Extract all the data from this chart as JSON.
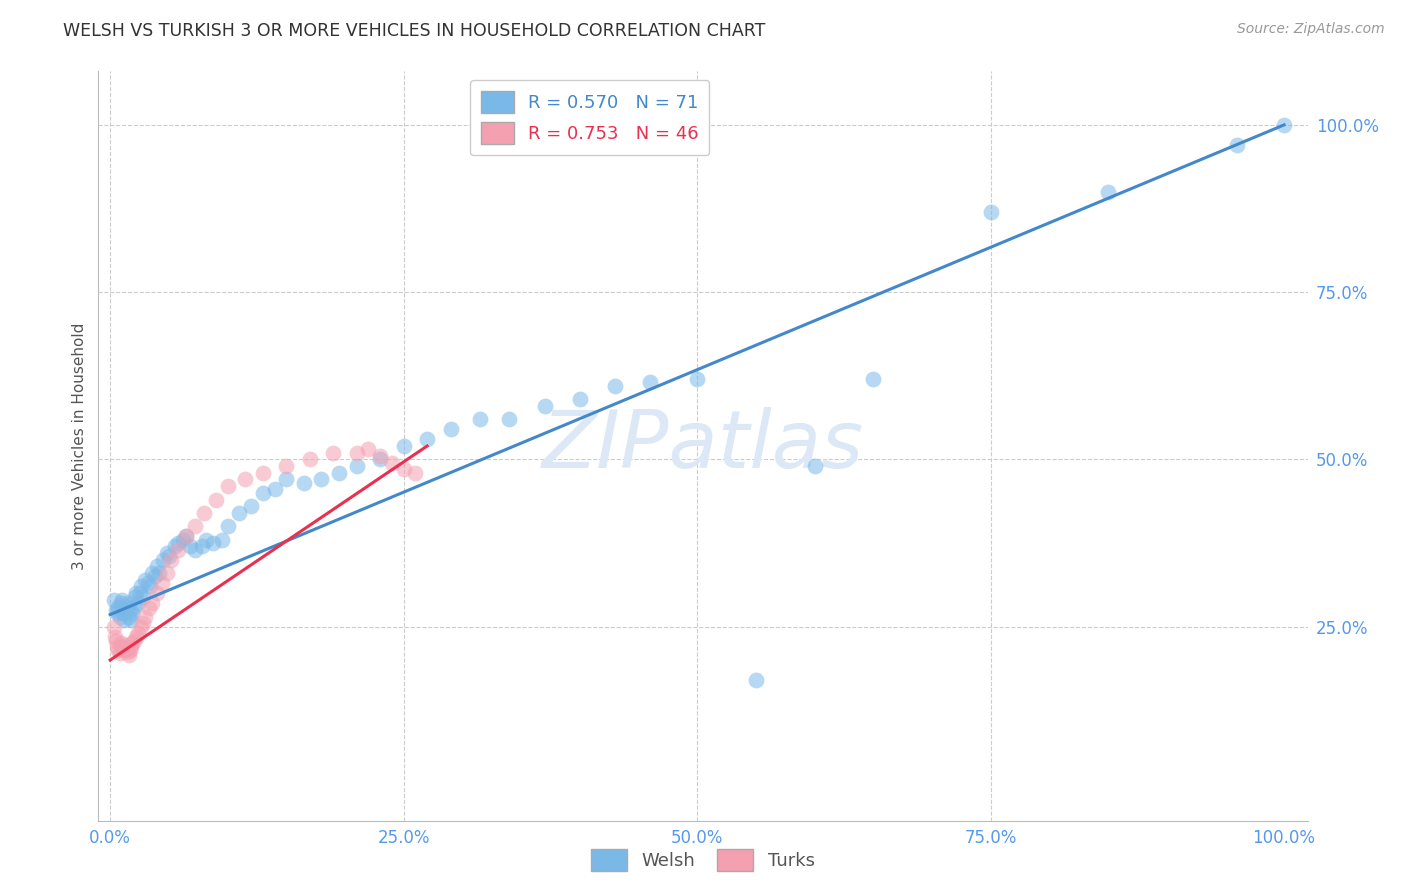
{
  "title": "WELSH VS TURKISH 3 OR MORE VEHICLES IN HOUSEHOLD CORRELATION CHART",
  "source": "Source: ZipAtlas.com",
  "ylabel": "3 or more Vehicles in Household",
  "xlabel": "",
  "xlim": [
    -0.01,
    1.02
  ],
  "ylim": [
    -0.04,
    1.08
  ],
  "xticks": [
    0.0,
    0.25,
    0.5,
    0.75,
    1.0
  ],
  "yticks": [
    0.0,
    0.25,
    0.5,
    0.75,
    1.0
  ],
  "xticklabels": [
    "0.0%",
    "25.0%",
    "50.0%",
    "75.0%",
    "100.0%"
  ],
  "yticklabels": [
    "",
    "25.0%",
    "50.0%",
    "75.0%",
    "100.0%"
  ],
  "welsh_R": 0.57,
  "welsh_N": 71,
  "turks_R": 0.753,
  "turks_N": 46,
  "welsh_color": "#7ab8e8",
  "turks_color": "#f4a0b0",
  "welsh_line_color": "#4488cc",
  "turks_line_color": "#e83050",
  "watermark": "ZIPatlas",
  "watermark_color": "#dce8f5",
  "welsh_x": [
    0.003,
    0.005,
    0.006,
    0.007,
    0.008,
    0.009,
    0.01,
    0.011,
    0.012,
    0.013,
    0.014,
    0.015,
    0.016,
    0.017,
    0.018,
    0.019,
    0.02,
    0.021,
    0.022,
    0.024,
    0.025,
    0.026,
    0.028,
    0.03,
    0.032,
    0.034,
    0.036,
    0.038,
    0.04,
    0.042,
    0.045,
    0.048,
    0.05,
    0.055,
    0.058,
    0.062,
    0.065,
    0.068,
    0.072,
    0.078,
    0.082,
    0.088,
    0.095,
    0.1,
    0.11,
    0.12,
    0.13,
    0.14,
    0.15,
    0.165,
    0.18,
    0.195,
    0.21,
    0.23,
    0.25,
    0.27,
    0.29,
    0.315,
    0.34,
    0.37,
    0.4,
    0.43,
    0.46,
    0.5,
    0.55,
    0.6,
    0.65,
    0.75,
    0.85,
    0.96,
    1.0
  ],
  "welsh_y": [
    0.29,
    0.275,
    0.27,
    0.28,
    0.265,
    0.285,
    0.29,
    0.27,
    0.26,
    0.275,
    0.28,
    0.285,
    0.265,
    0.275,
    0.26,
    0.27,
    0.28,
    0.295,
    0.3,
    0.285,
    0.3,
    0.31,
    0.295,
    0.32,
    0.315,
    0.31,
    0.33,
    0.325,
    0.34,
    0.33,
    0.35,
    0.36,
    0.355,
    0.37,
    0.375,
    0.38,
    0.385,
    0.37,
    0.365,
    0.37,
    0.38,
    0.375,
    0.38,
    0.4,
    0.42,
    0.43,
    0.45,
    0.455,
    0.47,
    0.465,
    0.47,
    0.48,
    0.49,
    0.5,
    0.52,
    0.53,
    0.545,
    0.56,
    0.56,
    0.58,
    0.59,
    0.61,
    0.615,
    0.62,
    0.17,
    0.49,
    0.62,
    0.87,
    0.9,
    0.97,
    1.0
  ],
  "turks_x": [
    0.003,
    0.004,
    0.005,
    0.006,
    0.007,
    0.008,
    0.009,
    0.01,
    0.011,
    0.012,
    0.013,
    0.014,
    0.015,
    0.016,
    0.017,
    0.018,
    0.019,
    0.02,
    0.022,
    0.024,
    0.026,
    0.028,
    0.03,
    0.033,
    0.036,
    0.04,
    0.044,
    0.048,
    0.052,
    0.058,
    0.065,
    0.072,
    0.08,
    0.09,
    0.1,
    0.115,
    0.13,
    0.15,
    0.17,
    0.19,
    0.21,
    0.22,
    0.23,
    0.24,
    0.25,
    0.26
  ],
  "turks_y": [
    0.25,
    0.235,
    0.228,
    0.22,
    0.215,
    0.21,
    0.225,
    0.22,
    0.218,
    0.215,
    0.222,
    0.218,
    0.212,
    0.208,
    0.215,
    0.22,
    0.225,
    0.228,
    0.235,
    0.24,
    0.25,
    0.255,
    0.265,
    0.278,
    0.285,
    0.3,
    0.315,
    0.33,
    0.35,
    0.365,
    0.385,
    0.4,
    0.42,
    0.44,
    0.46,
    0.47,
    0.48,
    0.49,
    0.5,
    0.51,
    0.51,
    0.515,
    0.505,
    0.495,
    0.485,
    0.48
  ],
  "welsh_line_x": [
    0.0,
    1.0
  ],
  "welsh_line_y": [
    0.268,
    1.0
  ],
  "turks_line_x": [
    0.0,
    0.27
  ],
  "turks_line_y": [
    0.2,
    0.52
  ]
}
